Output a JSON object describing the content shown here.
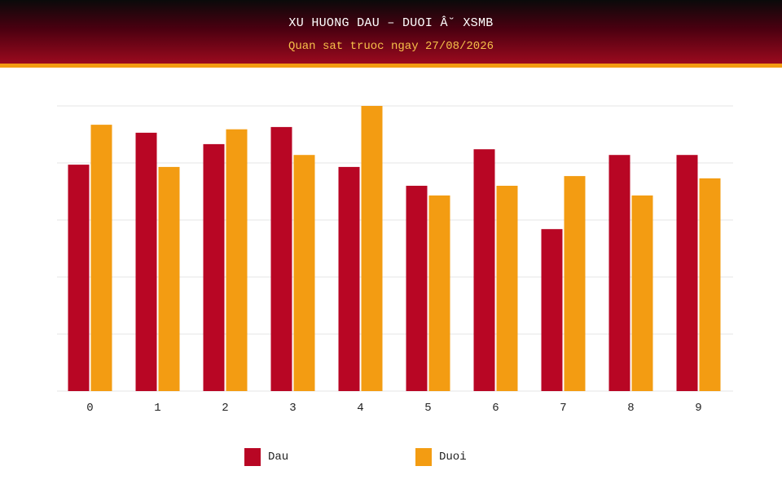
{
  "header": {
    "title": "XU HUONG DAU – DUOI Â˘ XSMB",
    "subtitle": "Quan sat truoc ngay 27/08/2026"
  },
  "colors": {
    "dau": "#b80624",
    "duoi": "#f39c12",
    "grid": "#e6e6e6",
    "axis_text": "#222222"
  },
  "chart_data": {
    "type": "bar",
    "categories": [
      "0",
      "1",
      "2",
      "3",
      "4",
      "5",
      "6",
      "7",
      "8",
      "9"
    ],
    "series": [
      {
        "name": "Dau",
        "values": [
          39.7,
          45.3,
          43.3,
          46.3,
          39.3,
          36.0,
          42.4,
          28.4,
          41.4,
          41.4
        ]
      },
      {
        "name": "Duoi",
        "values": [
          46.7,
          39.3,
          45.9,
          41.4,
          50.0,
          34.3,
          36.0,
          37.7,
          34.3,
          37.3
        ]
      }
    ],
    "ylim": [
      0,
      50
    ],
    "yticks_count": 5,
    "grid": true,
    "y_tick_labels_shown": false,
    "legend_position": "bottom-center"
  }
}
